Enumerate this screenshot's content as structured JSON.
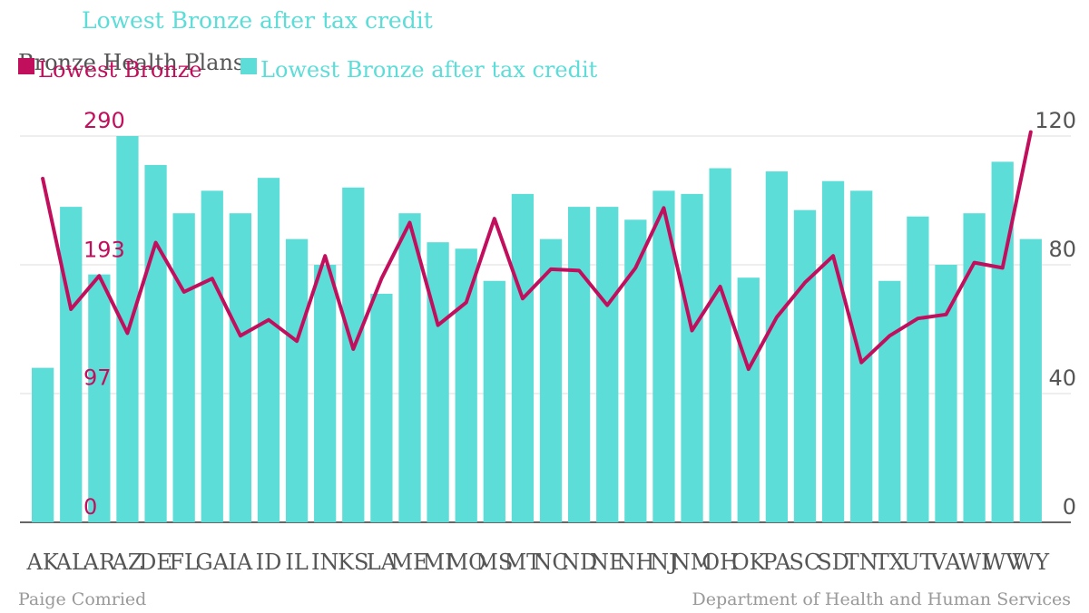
{
  "header": {
    "top_label": "Lowest Bronze after tax credit",
    "title": "Bronze Health Plans"
  },
  "legend": [
    {
      "label": "Lowest Bronze",
      "color": "#c20f5d"
    },
    {
      "label": "Lowest Bronze after tax credit",
      "color": "#5cddd8"
    }
  ],
  "footer": {
    "left": "Paige Comried",
    "right": "Department of Health and Human Services"
  },
  "chart_data": {
    "type": "bar+line",
    "title": "Bronze Health Plans",
    "categories": [
      "AK",
      "AL",
      "AR",
      "AZ",
      "DE",
      "FL",
      "GA",
      "IA",
      "ID",
      "IL",
      "IN",
      "KS",
      "LA",
      "ME",
      "MI",
      "MO",
      "MS",
      "MT",
      "NC",
      "ND",
      "NE",
      "NH",
      "NJ",
      "NM",
      "OH",
      "OK",
      "PA",
      "SC",
      "SD",
      "TN",
      "TX",
      "UT",
      "VA",
      "WI",
      "WV",
      "WY"
    ],
    "series": [
      {
        "name": "Lowest Bronze",
        "type": "line",
        "axis": "left",
        "color": "#c20f5d",
        "values": [
          258,
          160,
          185,
          142,
          210,
          173,
          183,
          140,
          152,
          136,
          200,
          130,
          183,
          225,
          148,
          165,
          228,
          168,
          190,
          189,
          163,
          191,
          236,
          144,
          177,
          115,
          154,
          180,
          200,
          120,
          140,
          153,
          156,
          195,
          191,
          293
        ]
      },
      {
        "name": "Lowest Bronze after tax credit",
        "type": "bar",
        "axis": "right",
        "color": "#5cddd8",
        "values": [
          48,
          98,
          77,
          120,
          111,
          96,
          103,
          96,
          107,
          88,
          80,
          104,
          71,
          96,
          87,
          85,
          75,
          102,
          88,
          98,
          98,
          94,
          103,
          102,
          110,
          76,
          109,
          97,
          106,
          103,
          75,
          95,
          80,
          96,
          112,
          88
        ]
      }
    ],
    "left_axis": {
      "ticks": [
        0,
        97,
        193,
        290
      ],
      "range": [
        0,
        290
      ],
      "color": "#c20f5d"
    },
    "right_axis": {
      "ticks": [
        0,
        40,
        80,
        120
      ],
      "range": [
        0,
        120
      ],
      "color": "#555555"
    },
    "grid": true,
    "legend_position": "top-left"
  }
}
